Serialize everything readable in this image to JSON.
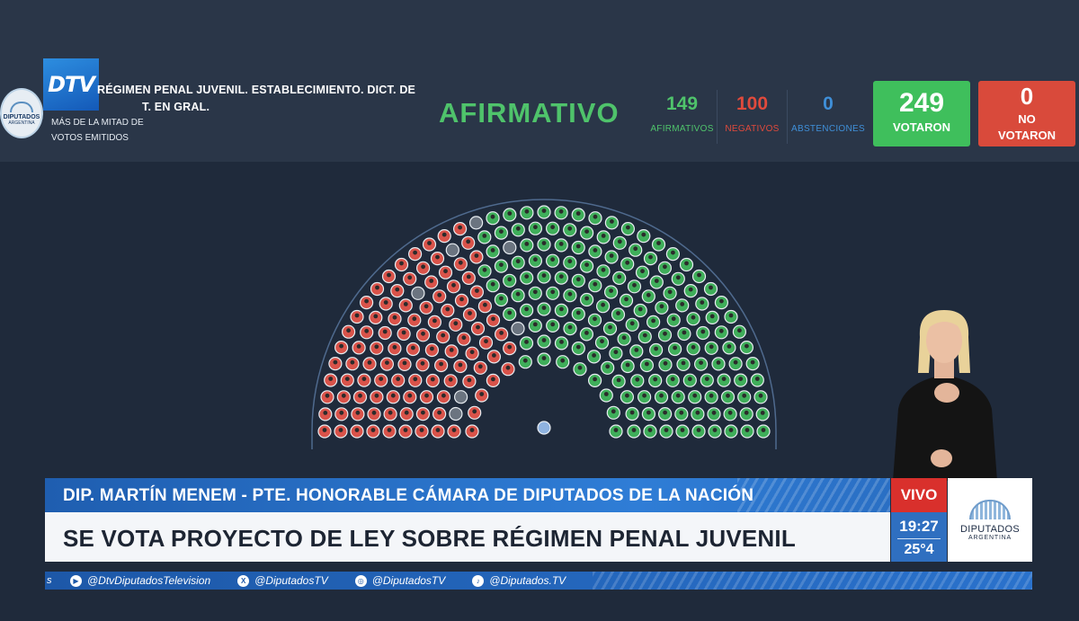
{
  "vote": {
    "motion_line1": "RÉGIMEN PENAL JUVENIL. ESTABLECIMIENTO. DICT. DE",
    "motion_line2": "T. EN GRAL.",
    "majority_line1": "MÁS DE LA MITAD DE",
    "majority_line2": "VOTOS EMITIDOS",
    "result": "AFIRMATIVO",
    "affirmative": {
      "count": "149",
      "label": "AFIRMATIVOS"
    },
    "negative": {
      "count": "100",
      "label": "NEGATIVOS"
    },
    "abstentions": {
      "count": "0",
      "label": "ABSTENCIONES"
    },
    "voted": {
      "count": "249",
      "label": "VOTARON"
    },
    "not_voted": {
      "count": "0",
      "label_line1": "NO",
      "label_line2": "VOTARON"
    }
  },
  "logo": {
    "channel": "DTV",
    "seal_line1": "DIPUTADOS",
    "seal_line2": "ARGENTINA"
  },
  "hemicycle": {
    "seat_colors": {
      "affirmative": "#3fae5a",
      "negative": "#d9534a",
      "absent": "#6b7480",
      "president": "#8fb3e0"
    }
  },
  "lower_third": {
    "speaker": "DIP. MARTÍN MENEM - PTE. HONORABLE CÁMARA DE DIPUTADOS DE LA NACIÓN",
    "headline": "SE VOTA PROYECTO DE LEY SOBRE RÉGIMEN PENAL JUVENIL",
    "live": "VIVO",
    "time": "19:27",
    "temperature": "25°4",
    "brand_line1": "DIPUTADOS",
    "brand_line2": "ARGENTINA"
  },
  "social": {
    "lead": "s",
    "items": [
      {
        "icon": "youtube-icon",
        "glyph": "▶",
        "handle": "@DtvDiputadosTelevision"
      },
      {
        "icon": "x-icon",
        "glyph": "X",
        "handle": "@DiputadosTV"
      },
      {
        "icon": "instagram-icon",
        "glyph": "◎",
        "handle": "@DiputadosTV"
      },
      {
        "icon": "tiktok-icon",
        "glyph": "♪",
        "handle": "@Diputados.TV"
      }
    ]
  }
}
